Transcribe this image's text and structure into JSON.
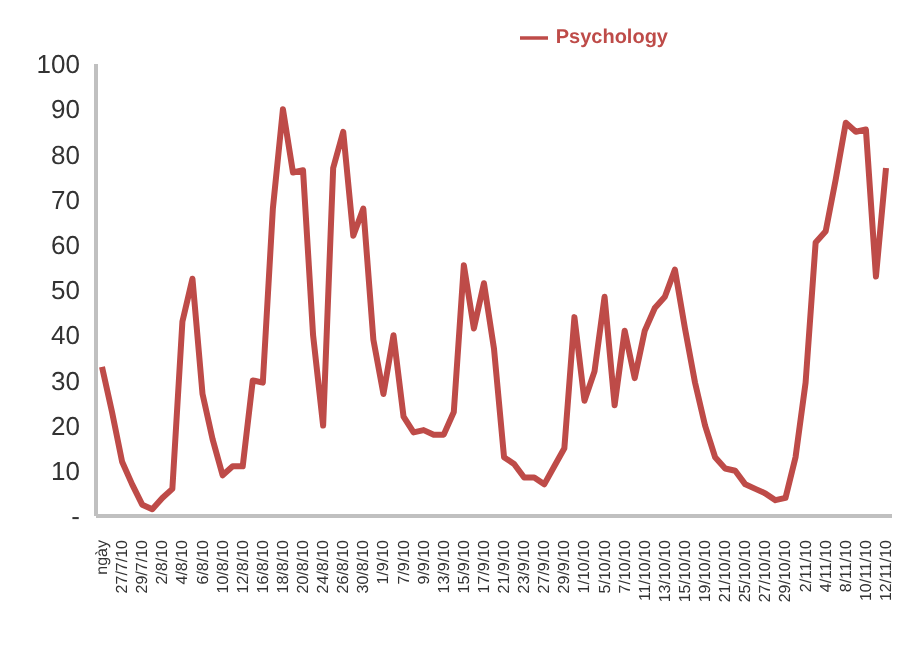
{
  "chart_data": {
    "type": "line",
    "categories": [
      "ngày",
      null,
      "27/7/10",
      null,
      "29/7/10",
      null,
      "2/8/10",
      null,
      "4/8/10",
      null,
      "6/8/10",
      null,
      "10/8/10",
      null,
      "12/8/10",
      null,
      "16/8/10",
      null,
      "18/8/10",
      null,
      "20/8/10",
      null,
      "24/8/10",
      null,
      "26/8/10",
      null,
      "30/8/10",
      null,
      "1/9/10",
      null,
      "7/9/10",
      null,
      "9/9/10",
      null,
      "13/9/10",
      null,
      "15/9/10",
      null,
      "17/9/10",
      null,
      "21/9/10",
      null,
      "23/9/10",
      null,
      "27/9/10",
      null,
      "29/9/10",
      null,
      "1/10/10",
      null,
      "5/10/10",
      null,
      "7/10/10",
      null,
      "11/10/10",
      null,
      "13/10/10",
      null,
      "15/10/10",
      null,
      "19/10/10",
      null,
      "21/10/10",
      null,
      "25/10/10",
      null,
      "27/10/10",
      null,
      "29/10/10",
      null,
      "2/11/10",
      null,
      "4/11/10",
      null,
      "8/11/10",
      null,
      "10/11/10",
      null,
      "12/11/10"
    ],
    "series": [
      {
        "name": "Psychology",
        "color": "#be4b48",
        "values": [
          33,
          23,
          12,
          7,
          2.5,
          1.5,
          4,
          6,
          43,
          52.5,
          27,
          17,
          9,
          11,
          11,
          30,
          29.5,
          68,
          90,
          76,
          76.5,
          40,
          20,
          77,
          85,
          62,
          68,
          39,
          27,
          40,
          22,
          18.5,
          19,
          18,
          18,
          23,
          55.5,
          41.5,
          51.5,
          37,
          13,
          11.5,
          8.5,
          8.5,
          7,
          11,
          15,
          44,
          25.5,
          32,
          48.5,
          24.5,
          41,
          30.5,
          41,
          46,
          48.5,
          54.5,
          41.5,
          29.5,
          20,
          13,
          10.5,
          10,
          7,
          6,
          5,
          3.5,
          4,
          13,
          29.5,
          60.5,
          63,
          74.5,
          87,
          85,
          85.5,
          53,
          77
        ]
      }
    ],
    "ylim": [
      0,
      100
    ],
    "yticks": [
      {
        "value": 0,
        "label": "-"
      },
      10,
      20,
      30,
      40,
      50,
      60,
      70,
      80,
      90,
      100
    ],
    "grid": false,
    "legend": "top right",
    "marker": "none",
    "line_style": "solid"
  }
}
